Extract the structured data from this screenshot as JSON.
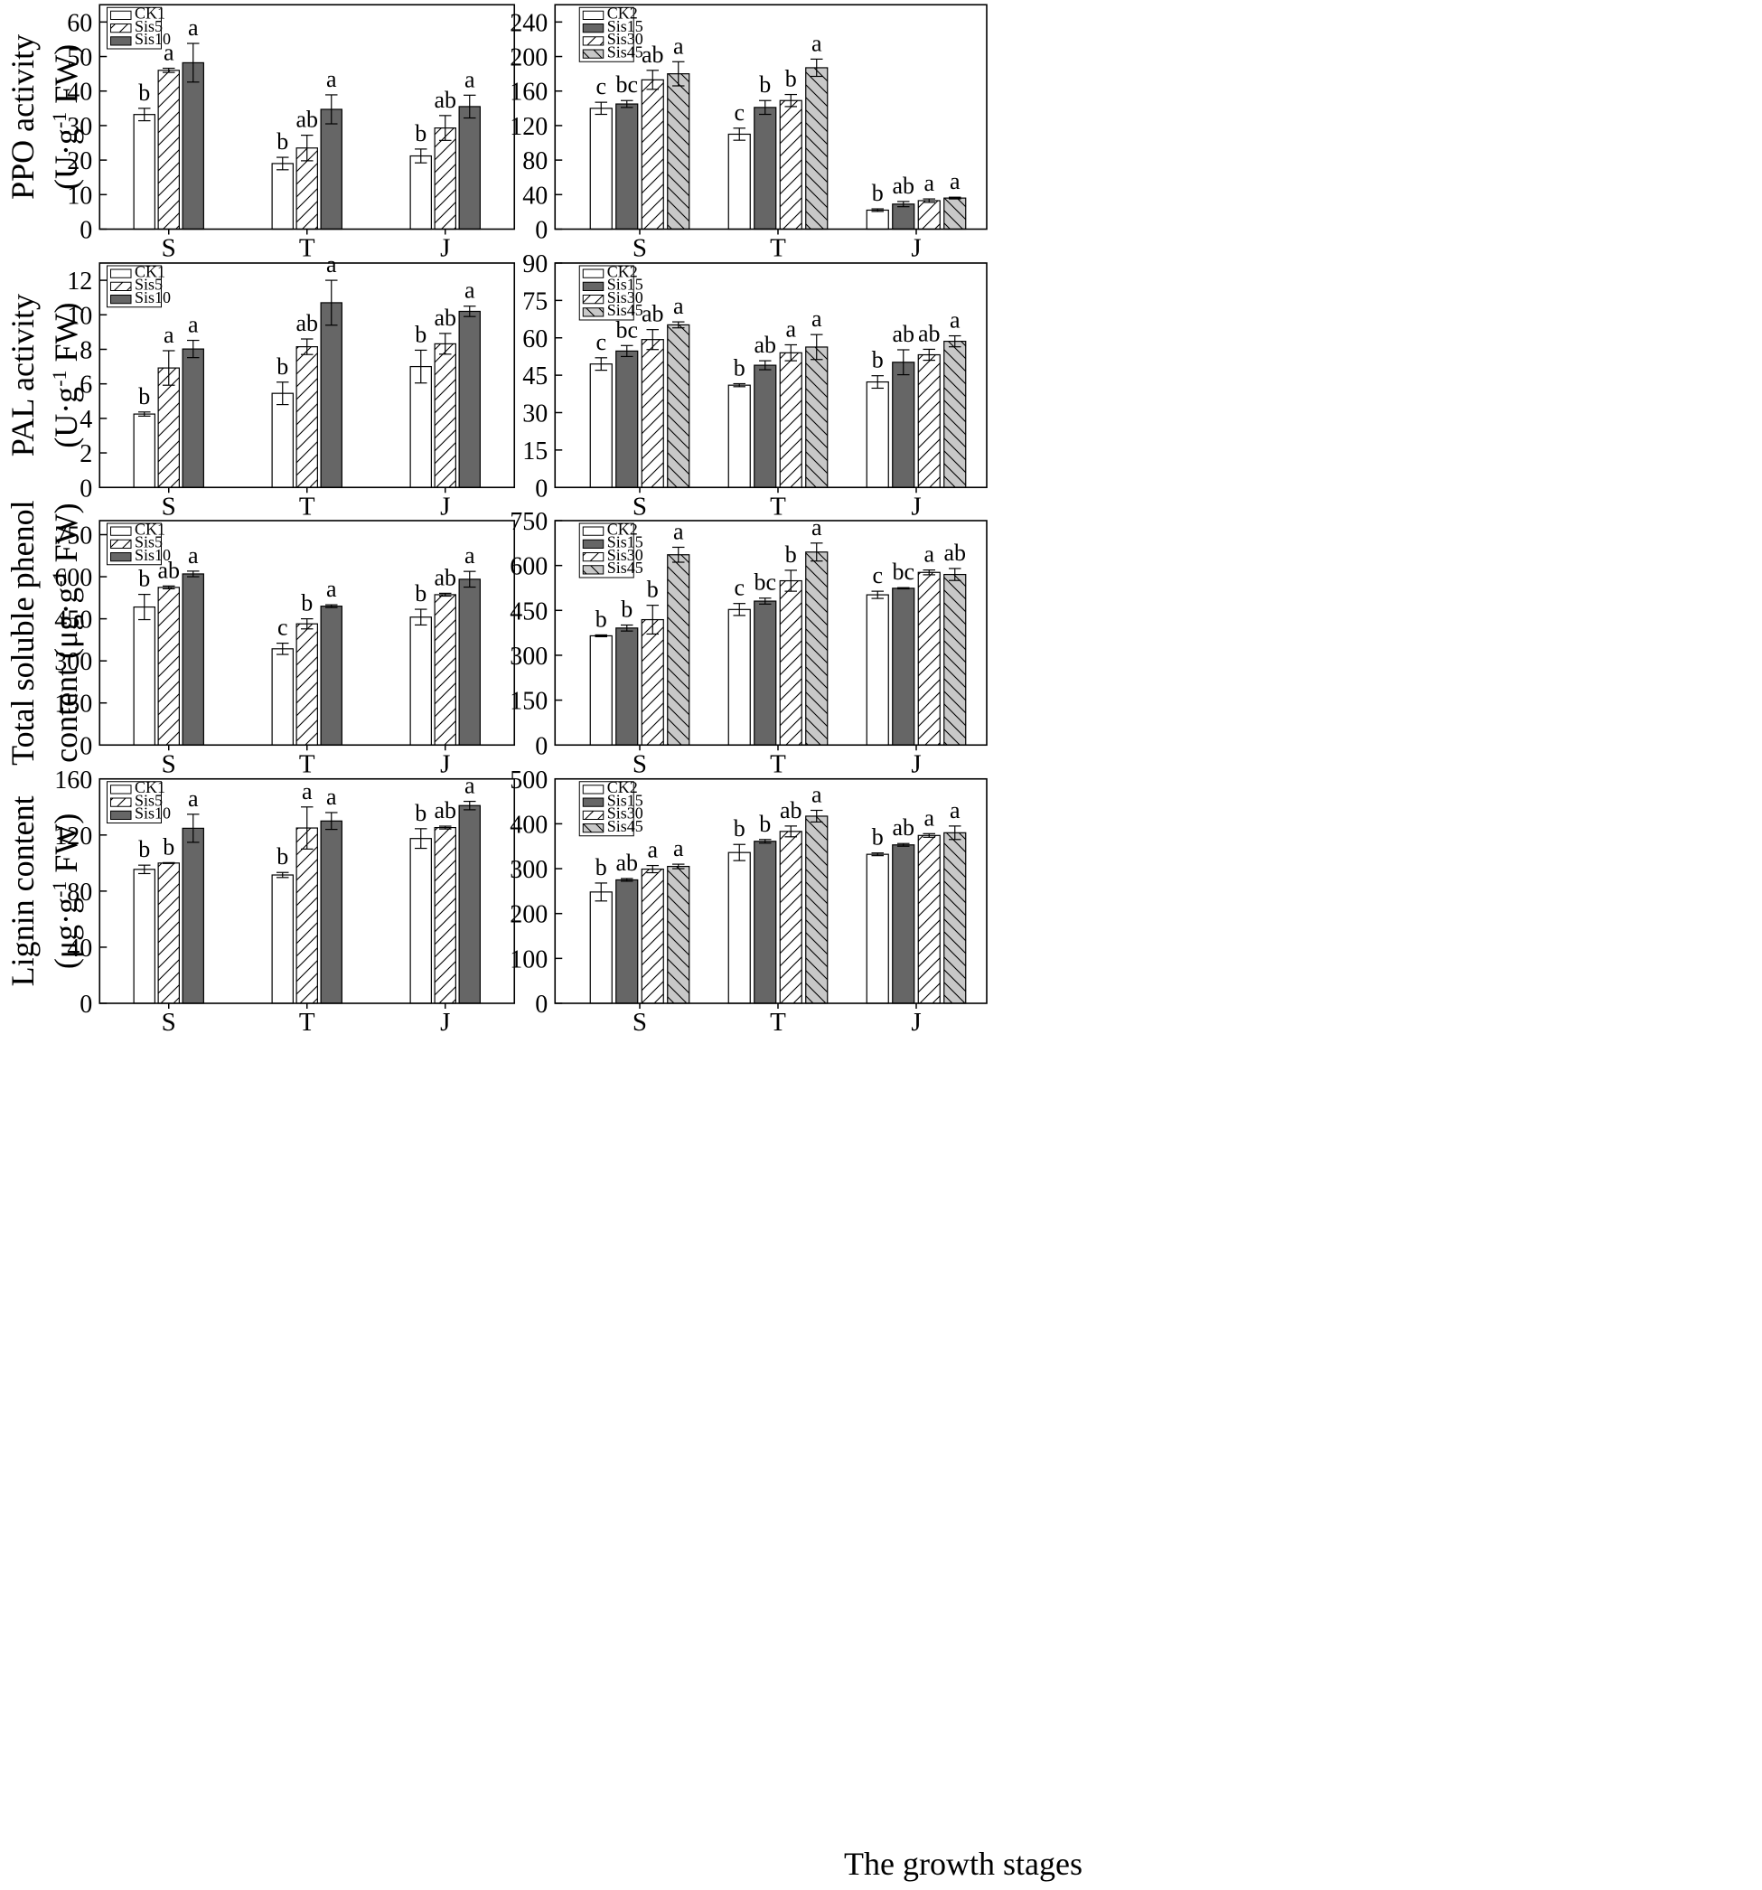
{
  "figure": {
    "xlabel": "The growth stages"
  },
  "colors": {
    "white": "#ffffff",
    "dark": "#666666",
    "light": "#c8c8c8",
    "stroke": "#000000"
  },
  "chart_data": [
    {
      "id": "ppo-left",
      "type": "bar",
      "ylabel": "PPO activity",
      "yunit_base": "(U·g",
      "yunit_sup": "-1",
      "yunit_tail": " FW)",
      "categories": [
        "S",
        "T",
        "J"
      ],
      "ylim": [
        0,
        65
      ],
      "yticks": [
        0,
        10,
        20,
        30,
        40,
        50,
        60
      ],
      "series": [
        {
          "name": "CK1",
          "style": "white",
          "values": [
            33.2,
            19.0,
            21.2
          ],
          "errors": [
            1.8,
            1.8,
            2.0
          ],
          "letters": [
            "b",
            "b",
            "b"
          ]
        },
        {
          "name": "Sis5",
          "style": "hatch-up",
          "values": [
            46.0,
            23.5,
            29.3
          ],
          "errors": [
            0.6,
            3.7,
            3.6
          ],
          "letters": [
            "a",
            "ab",
            "ab"
          ]
        },
        {
          "name": "Sis10",
          "style": "dark",
          "values": [
            48.2,
            34.7,
            35.5
          ],
          "errors": [
            5.6,
            4.2,
            3.3
          ],
          "letters": [
            "a",
            "a",
            "a"
          ]
        }
      ]
    },
    {
      "id": "ppo-right",
      "type": "bar",
      "ylabel": "",
      "categories": [
        "S",
        "T",
        "J"
      ],
      "ylim": [
        0,
        260
      ],
      "yticks": [
        0,
        40,
        80,
        120,
        160,
        200,
        240
      ],
      "series": [
        {
          "name": "CK2",
          "style": "white",
          "values": [
            140,
            110,
            22
          ],
          "errors": [
            7,
            7,
            1.5
          ],
          "letters": [
            "c",
            "c",
            "b"
          ]
        },
        {
          "name": "Sis15",
          "style": "dark",
          "values": [
            145,
            141,
            29
          ],
          "errors": [
            4,
            8,
            3
          ],
          "letters": [
            "bc",
            "b",
            "ab"
          ]
        },
        {
          "name": "Sis30",
          "style": "hatch-up",
          "values": [
            173,
            149,
            33
          ],
          "errors": [
            11,
            7,
            2
          ],
          "letters": [
            "ab",
            "b",
            "a"
          ]
        },
        {
          "name": "Sis45",
          "style": "hatch-down",
          "values": [
            180,
            187,
            36
          ],
          "errors": [
            14,
            10,
            1
          ],
          "letters": [
            "a",
            "a",
            "a"
          ]
        }
      ]
    },
    {
      "id": "pal-left",
      "type": "bar",
      "ylabel": "PAL activity",
      "yunit_base": "(U·g",
      "yunit_sup": "-1",
      "yunit_tail": " FW)",
      "categories": [
        "S",
        "T",
        "J"
      ],
      "ylim": [
        0,
        13
      ],
      "yticks": [
        0,
        2,
        4,
        6,
        8,
        10,
        12
      ],
      "series": [
        {
          "name": "CK1",
          "style": "white",
          "values": [
            4.25,
            5.45,
            7.0
          ],
          "errors": [
            0.12,
            0.65,
            0.95
          ],
          "letters": [
            "b",
            "b",
            "b"
          ]
        },
        {
          "name": "Sis5",
          "style": "hatch-up",
          "values": [
            6.92,
            8.15,
            8.32
          ],
          "errors": [
            1.0,
            0.45,
            0.6
          ],
          "letters": [
            "a",
            "ab",
            "ab"
          ]
        },
        {
          "name": "Sis10",
          "style": "dark",
          "values": [
            8.02,
            10.7,
            10.2
          ],
          "errors": [
            0.5,
            1.3,
            0.3
          ],
          "letters": [
            "a",
            "a",
            "a"
          ]
        }
      ]
    },
    {
      "id": "pal-right",
      "type": "bar",
      "ylabel": "",
      "categories": [
        "S",
        "T",
        "J"
      ],
      "ylim": [
        0,
        90
      ],
      "yticks": [
        0,
        15,
        30,
        45,
        60,
        75,
        90
      ],
      "series": [
        {
          "name": "CK2",
          "style": "white",
          "values": [
            49.5,
            41,
            42.3
          ],
          "errors": [
            2.5,
            0.6,
            2.5
          ],
          "letters": [
            "c",
            "b",
            "b"
          ]
        },
        {
          "name": "Sis15",
          "style": "dark",
          "values": [
            54.7,
            49,
            50.2
          ],
          "errors": [
            2.2,
            1.8,
            5.0
          ],
          "letters": [
            "bc",
            "ab",
            "ab"
          ]
        },
        {
          "name": "Sis30",
          "style": "hatch-up",
          "values": [
            59.3,
            54,
            53.2
          ],
          "errors": [
            4.0,
            3.2,
            2.2
          ],
          "letters": [
            "ab",
            "a",
            "ab"
          ]
        },
        {
          "name": "Sis45",
          "style": "hatch-down",
          "values": [
            65.2,
            56.3,
            58.6
          ],
          "errors": [
            1.2,
            5.0,
            2.2
          ],
          "letters": [
            "a",
            "a",
            "a"
          ]
        }
      ]
    },
    {
      "id": "phenol-left",
      "type": "bar",
      "ylabel": "Total soluble phenol",
      "ylabel2": "content",
      "yunit_base": "(μg·g",
      "yunit_sup": "-1",
      "yunit_tail": " FW)",
      "categories": [
        "S",
        "T",
        "J"
      ],
      "ylim": [
        0,
        800
      ],
      "yticks": [
        0,
        150,
        300,
        450,
        600,
        750
      ],
      "series": [
        {
          "name": "CK1",
          "style": "white",
          "values": [
            492,
            343,
            456
          ],
          "errors": [
            45,
            20,
            28
          ],
          "letters": [
            "b",
            "c",
            "b"
          ]
        },
        {
          "name": "Sis5",
          "style": "hatch-up",
          "values": [
            562,
            432,
            536
          ],
          "errors": [
            5,
            18,
            5
          ],
          "letters": [
            "ab",
            "b",
            "ab"
          ]
        },
        {
          "name": "Sis10",
          "style": "dark",
          "values": [
            610,
            495,
            591
          ],
          "errors": [
            10,
            5,
            28
          ],
          "letters": [
            "a",
            "a",
            "a"
          ]
        }
      ]
    },
    {
      "id": "phenol-right",
      "type": "bar",
      "ylabel": "",
      "categories": [
        "S",
        "T",
        "J"
      ],
      "ylim": [
        0,
        750
      ],
      "yticks": [
        0,
        150,
        300,
        450,
        600,
        750
      ],
      "series": [
        {
          "name": "CK2",
          "style": "white",
          "values": [
            365,
            453,
            502
          ],
          "errors": [
            3,
            20,
            12
          ],
          "letters": [
            "b",
            "c",
            "c"
          ]
        },
        {
          "name": "Sis15",
          "style": "dark",
          "values": [
            391,
            481,
            524
          ],
          "errors": [
            10,
            10,
            2
          ],
          "letters": [
            "b",
            "bc",
            "bc"
          ]
        },
        {
          "name": "Sis30",
          "style": "hatch-up",
          "values": [
            419,
            549,
            577
          ],
          "errors": [
            48,
            35,
            8
          ],
          "letters": [
            "b",
            "b",
            "a"
          ]
        },
        {
          "name": "Sis45",
          "style": "hatch-down",
          "values": [
            636,
            645,
            570
          ],
          "errors": [
            25,
            30,
            20
          ],
          "letters": [
            "a",
            "a",
            "ab"
          ]
        }
      ]
    },
    {
      "id": "lignin-left",
      "type": "bar",
      "ylabel": "Lignin content",
      "yunit_base": "(μg·g",
      "yunit_sup": "-1",
      "yunit_tail": " FW)",
      "categories": [
        "S",
        "T",
        "J"
      ],
      "ylim": [
        0,
        160
      ],
      "yticks": [
        0,
        40,
        80,
        120,
        160
      ],
      "series": [
        {
          "name": "CK1",
          "style": "white",
          "values": [
            95.5,
            91.5,
            117.5
          ],
          "errors": [
            3,
            1.8,
            7
          ],
          "letters": [
            "b",
            "b",
            "b"
          ]
        },
        {
          "name": "Sis5",
          "style": "hatch-up",
          "values": [
            100,
            125,
            125.3
          ],
          "errors": [
            0.3,
            15,
            1
          ],
          "letters": [
            "b",
            "a",
            "ab"
          ]
        },
        {
          "name": "Sis10",
          "style": "dark",
          "values": [
            124.8,
            130,
            141
          ],
          "errors": [
            10,
            6,
            3
          ],
          "letters": [
            "a",
            "a",
            "a"
          ]
        }
      ]
    },
    {
      "id": "lignin-right",
      "type": "bar",
      "ylabel": "",
      "categories": [
        "S",
        "T",
        "J"
      ],
      "ylim": [
        0,
        500
      ],
      "yticks": [
        0,
        100,
        200,
        300,
        400,
        500
      ],
      "series": [
        {
          "name": "CK2",
          "style": "white",
          "values": [
            248,
            336,
            332
          ],
          "errors": [
            20,
            18,
            3
          ],
          "letters": [
            "b",
            "b",
            "b"
          ]
        },
        {
          "name": "Sis15",
          "style": "dark",
          "values": [
            275,
            361,
            353
          ],
          "errors": [
            3,
            4,
            3
          ],
          "letters": [
            "ab",
            "b",
            "ab"
          ]
        },
        {
          "name": "Sis30",
          "style": "hatch-up",
          "values": [
            299,
            383,
            374
          ],
          "errors": [
            8,
            12,
            4
          ],
          "letters": [
            "a",
            "ab",
            "a"
          ]
        },
        {
          "name": "Sis45",
          "style": "hatch-down",
          "values": [
            305,
            417,
            380
          ],
          "errors": [
            5,
            13,
            15
          ],
          "letters": [
            "a",
            "a",
            "a"
          ]
        }
      ]
    }
  ]
}
